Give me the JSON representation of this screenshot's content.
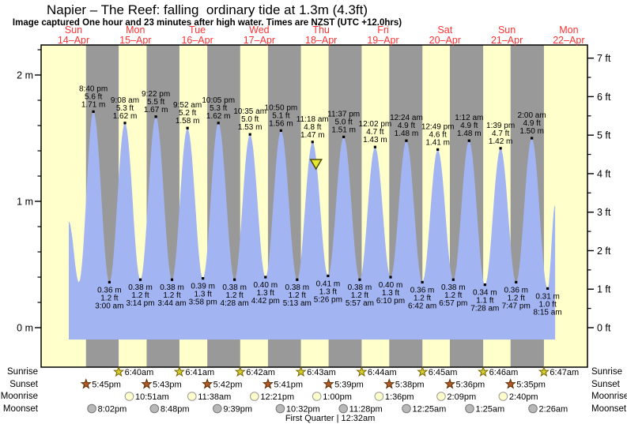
{
  "chart_data": {
    "type": "area",
    "title": "Napier – The Reef: falling  ordinary tide at 1.3m (4.3ft)",
    "subtitle": "Image captured One hour and 23 minutes after high water. Times are NZST (UTC +12.0hrs)",
    "days": [
      {
        "weekday": "Sun",
        "date": "14–Apr"
      },
      {
        "weekday": "Mon",
        "date": "15–Apr"
      },
      {
        "weekday": "Tue",
        "date": "16–Apr"
      },
      {
        "weekday": "Wed",
        "date": "17–Apr"
      },
      {
        "weekday": "Thu",
        "date": "18–Apr"
      },
      {
        "weekday": "Fri",
        "date": "19–Apr"
      },
      {
        "weekday": "Sat",
        "date": "20–Apr"
      },
      {
        "weekday": "Sun",
        "date": "21–Apr"
      },
      {
        "weekday": "Mon",
        "date": "22–Apr"
      }
    ],
    "y_axis_left": {
      "unit": "m",
      "tick_labels": [
        "0 m",
        "1 m",
        "2 m"
      ],
      "range_m": [
        0,
        2.25
      ]
    },
    "y_axis_right": {
      "unit": "ft",
      "tick_labels": [
        "0 ft",
        "1 ft",
        "2 ft",
        "3 ft",
        "4 ft",
        "5 ft",
        "6 ft",
        "7 ft"
      ],
      "range_ft": [
        0,
        7
      ]
    },
    "extremes": [
      {
        "type": "high",
        "day": 0,
        "time": "8:40 pm",
        "ft": "5.6 ft",
        "m": "1.71 m"
      },
      {
        "type": "low",
        "day": 1,
        "time": "3:00 am",
        "ft": "1.2 ft",
        "m": "0.36 m"
      },
      {
        "type": "high",
        "day": 1,
        "time": "9:08 am",
        "ft": "5.3 ft",
        "m": "1.62 m"
      },
      {
        "type": "low",
        "day": 1,
        "time": "3:14 pm",
        "ft": "1.2 ft",
        "m": "0.38 m"
      },
      {
        "type": "high",
        "day": 1,
        "time": "9:22 pm",
        "ft": "5.5 ft",
        "m": "1.67 m"
      },
      {
        "type": "low",
        "day": 2,
        "time": "3:44 am",
        "ft": "1.2 ft",
        "m": "0.38 m"
      },
      {
        "type": "high",
        "day": 2,
        "time": "9:52 am",
        "ft": "5.2 ft",
        "m": "1.58 m"
      },
      {
        "type": "low",
        "day": 2,
        "time": "3:58 pm",
        "ft": "1.3 ft",
        "m": "0.39 m"
      },
      {
        "type": "high",
        "day": 2,
        "time": "10:05 pm",
        "ft": "5.3 ft",
        "m": "1.62 m"
      },
      {
        "type": "low",
        "day": 3,
        "time": "4:28 am",
        "ft": "1.2 ft",
        "m": "0.38 m"
      },
      {
        "type": "high",
        "day": 3,
        "time": "10:35 am",
        "ft": "5.0 ft",
        "m": "1.53 m"
      },
      {
        "type": "low",
        "day": 3,
        "time": "4:42 pm",
        "ft": "1.3 ft",
        "m": "0.40 m"
      },
      {
        "type": "high",
        "day": 3,
        "time": "10:50 pm",
        "ft": "5.1 ft",
        "m": "1.56 m"
      },
      {
        "type": "low",
        "day": 4,
        "time": "5:13 am",
        "ft": "1.2 ft",
        "m": "0.38 m"
      },
      {
        "type": "high",
        "day": 4,
        "time": "11:18 am",
        "ft": "4.8 ft",
        "m": "1.47 m"
      },
      {
        "type": "low",
        "day": 4,
        "time": "5:26 pm",
        "ft": "1.3 ft",
        "m": "0.41 m"
      },
      {
        "type": "high",
        "day": 4,
        "time": "11:37 pm",
        "ft": "5.0 ft",
        "m": "1.51 m"
      },
      {
        "type": "low",
        "day": 5,
        "time": "5:57 am",
        "ft": "1.2 ft",
        "m": "0.38 m"
      },
      {
        "type": "high",
        "day": 5,
        "time": "12:02 pm",
        "ft": "4.7 ft",
        "m": "1.43 m"
      },
      {
        "type": "low",
        "day": 5,
        "time": "6:10 pm",
        "ft": "1.3 ft",
        "m": "0.40 m"
      },
      {
        "type": "high",
        "day": 6,
        "time": "12:24 am",
        "ft": "4.9 ft",
        "m": "1.48 m"
      },
      {
        "type": "low",
        "day": 6,
        "time": "6:42 am",
        "ft": "1.2 ft",
        "m": "0.36 m"
      },
      {
        "type": "high",
        "day": 6,
        "time": "12:49 pm",
        "ft": "4.6 ft",
        "m": "1.41 m"
      },
      {
        "type": "low",
        "day": 6,
        "time": "6:57 pm",
        "ft": "1.2 ft",
        "m": "0.38 m"
      },
      {
        "type": "high",
        "day": 7,
        "time": "1:12 am",
        "ft": "4.9 ft",
        "m": "1.48 m"
      },
      {
        "type": "low",
        "day": 7,
        "time": "7:28 am",
        "ft": "1.1 ft",
        "m": "0.34 m"
      },
      {
        "type": "high",
        "day": 7,
        "time": "1:39 pm",
        "ft": "4.7 ft",
        "m": "1.42 m"
      },
      {
        "type": "low",
        "day": 7,
        "time": "7:47 pm",
        "ft": "1.2 ft",
        "m": "0.36 m"
      },
      {
        "type": "high",
        "day": 8,
        "time": "2:00 am",
        "ft": "4.9 ft",
        "m": "1.50 m"
      },
      {
        "type": "low",
        "day": 8,
        "time": "8:15 am",
        "ft": "1.0 ft",
        "m": "0.31 m"
      }
    ],
    "curve_edges": {
      "start": {
        "t_hours": 10.93,
        "height_m": 0.84
      },
      "pre_low": {
        "t_hours": 14.95,
        "height_m": 0.36
      },
      "end": {
        "t_hours": 203.2,
        "height_m": 0.97
      }
    },
    "current_marker": {
      "t_hours": 108.68,
      "height_m": 1.3
    },
    "sun_moon": {
      "sunrise": {
        "label": "Sunrise",
        "events": [
          {
            "day": 1,
            "time": "6:40am"
          },
          {
            "day": 2,
            "time": "6:41am"
          },
          {
            "day": 3,
            "time": "6:42am"
          },
          {
            "day": 4,
            "time": "6:43am"
          },
          {
            "day": 5,
            "time": "6:44am"
          },
          {
            "day": 6,
            "time": "6:45am"
          },
          {
            "day": 7,
            "time": "6:46am"
          },
          {
            "day": 8,
            "time": "6:47am"
          }
        ]
      },
      "sunset": {
        "label": "Sunset",
        "events": [
          {
            "day": 0,
            "time": "5:45pm"
          },
          {
            "day": 1,
            "time": "5:43pm"
          },
          {
            "day": 2,
            "time": "5:42pm"
          },
          {
            "day": 3,
            "time": "5:41pm"
          },
          {
            "day": 4,
            "time": "5:39pm"
          },
          {
            "day": 5,
            "time": "5:38pm"
          },
          {
            "day": 6,
            "time": "5:36pm"
          },
          {
            "day": 7,
            "time": "5:35pm"
          }
        ]
      },
      "moonrise": {
        "label": "Moonrise",
        "events": [
          {
            "day": 1,
            "time": "10:51am"
          },
          {
            "day": 2,
            "time": "11:38am"
          },
          {
            "day": 3,
            "time": "12:21pm"
          },
          {
            "day": 4,
            "time": "1:00pm"
          },
          {
            "day": 5,
            "time": "1:36pm"
          },
          {
            "day": 6,
            "time": "2:09pm"
          },
          {
            "day": 7,
            "time": "2:40pm"
          }
        ]
      },
      "moonset": {
        "label": "Moonset",
        "events": [
          {
            "day": 0,
            "time": "8:02pm"
          },
          {
            "day": 1,
            "time": "8:48pm"
          },
          {
            "day": 2,
            "time": "9:39pm"
          },
          {
            "day": 3,
            "time": "10:32pm"
          },
          {
            "day": 4,
            "time": "11:28pm"
          },
          {
            "day": 6,
            "time": "12:25am"
          },
          {
            "day": 7,
            "time": "1:25am"
          },
          {
            "day": 8,
            "time": "2:26am"
          }
        ]
      }
    },
    "moon_phase": {
      "label": "First Quarter | 12:32am",
      "day": 4,
      "time": "12:32am"
    },
    "colors": {
      "day_band": "#ffffcc",
      "night_band": "#999999",
      "tide_fill": "#a3b4f2",
      "day_label_red": "#ff3333",
      "sunrise_star": "#cfcf2f",
      "sunrise_star_stroke": "#7a6000",
      "sunset_star": "#b05a28",
      "sunset_star_stroke": "#5a2d00",
      "moonrise_circle": "#ffffcc",
      "moonrise_circle_stroke": "#999999",
      "moonset_circle": "#b8b8b8",
      "moonset_circle_stroke": "#777777",
      "marker_fill": "#e8e832",
      "marker_stroke": "#4d4d00",
      "frame": "#000000"
    }
  }
}
